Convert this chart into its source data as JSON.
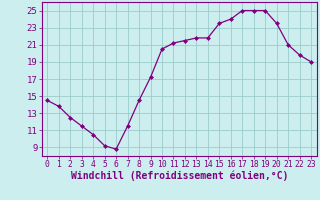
{
  "x": [
    0,
    1,
    2,
    3,
    4,
    5,
    6,
    7,
    8,
    9,
    10,
    11,
    12,
    13,
    14,
    15,
    16,
    17,
    18,
    19,
    20,
    21,
    22,
    23
  ],
  "y": [
    14.5,
    13.8,
    12.5,
    11.5,
    10.5,
    9.2,
    8.8,
    11.5,
    14.5,
    17.2,
    20.5,
    21.2,
    21.5,
    21.8,
    21.8,
    23.5,
    24.0,
    25.0,
    25.0,
    25.0,
    23.5,
    21.0,
    19.8,
    19.0
  ],
  "line_color": "#800080",
  "marker": "D",
  "marker_size": 2.0,
  "bg_color": "#cceeee",
  "grid_color": "#99cccc",
  "xlabel": "Windchill (Refroidissement éolien,°C)",
  "xlim": [
    -0.5,
    23.5
  ],
  "ylim": [
    8.0,
    26.0
  ],
  "yticks": [
    9,
    11,
    13,
    15,
    17,
    19,
    21,
    23,
    25
  ],
  "xticks": [
    0,
    1,
    2,
    3,
    4,
    5,
    6,
    7,
    8,
    9,
    10,
    11,
    12,
    13,
    14,
    15,
    16,
    17,
    18,
    19,
    20,
    21,
    22,
    23
  ],
  "xlabel_fontsize": 7.0,
  "tick_fontsize": 6.5,
  "xtick_fontsize": 5.8,
  "tick_color": "#800080",
  "spine_color": "#800080",
  "linewidth": 0.9
}
